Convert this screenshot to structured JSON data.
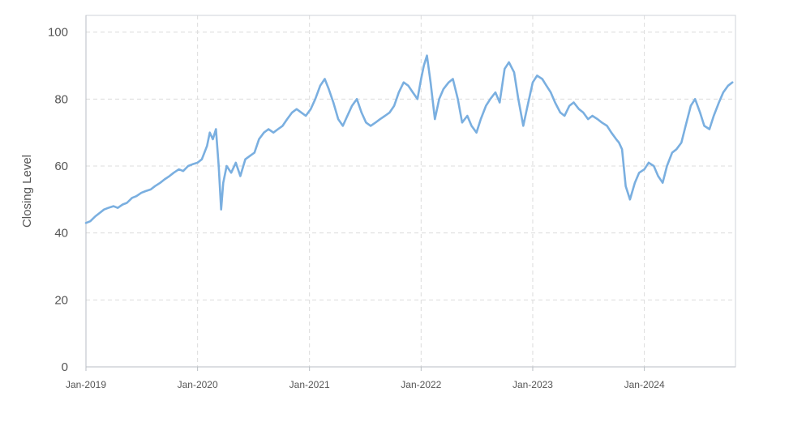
{
  "chart_data": {
    "type": "line",
    "title": "",
    "xlabel": "",
    "ylabel": "Closing Level",
    "ylim": [
      0,
      105
    ],
    "yticks": [
      0,
      20,
      40,
      60,
      80,
      100
    ],
    "xlim": [
      "2019-01",
      "2024-10"
    ],
    "xticks": [
      "2019-01",
      "2020-01",
      "2021-01",
      "2022-01",
      "2023-01",
      "2024-01"
    ],
    "xtick_labels": [
      "Jan-2019",
      "Jan-2020",
      "Jan-2021",
      "Jan-2022",
      "Jan-2023",
      "Jan-2024"
    ],
    "grid": true,
    "legend": "none",
    "colors": {
      "line": "#7aafe0",
      "grid": "#dcdcdc",
      "frame": "#cfd3d8",
      "text": "#555555"
    },
    "series": [
      {
        "x": [
          "2019-01-01",
          "2019-01-15",
          "2019-02-01",
          "2019-02-15",
          "2019-03-01",
          "2019-03-15",
          "2019-04-01",
          "2019-04-15",
          "2019-05-01",
          "2019-05-15",
          "2019-06-01",
          "2019-06-15",
          "2019-07-01",
          "2019-07-15",
          "2019-08-01",
          "2019-08-15",
          "2019-09-01",
          "2019-09-15",
          "2019-10-01",
          "2019-10-15",
          "2019-11-01",
          "2019-11-15",
          "2019-12-01",
          "2019-12-15",
          "2020-01-01",
          "2020-01-15",
          "2020-02-01",
          "2020-02-10",
          "2020-02-20",
          "2020-03-01",
          "2020-03-10",
          "2020-03-18",
          "2020-03-25",
          "2020-04-05",
          "2020-04-20",
          "2020-05-05",
          "2020-05-20",
          "2020-06-05",
          "2020-06-20",
          "2020-07-05",
          "2020-07-20",
          "2020-08-05",
          "2020-08-20",
          "2020-09-05",
          "2020-09-20",
          "2020-10-05",
          "2020-10-20",
          "2020-11-05",
          "2020-11-20",
          "2020-12-05",
          "2020-12-20",
          "2021-01-05",
          "2021-01-20",
          "2021-02-05",
          "2021-02-20",
          "2021-03-05",
          "2021-03-20",
          "2021-04-05",
          "2021-04-20",
          "2021-05-05",
          "2021-05-20",
          "2021-06-05",
          "2021-06-20",
          "2021-07-05",
          "2021-07-20",
          "2021-08-05",
          "2021-08-20",
          "2021-09-05",
          "2021-09-20",
          "2021-10-05",
          "2021-10-20",
          "2021-11-05",
          "2021-11-20",
          "2021-12-05",
          "2021-12-20",
          "2022-01-01",
          "2022-01-10",
          "2022-01-20",
          "2022-02-01",
          "2022-02-15",
          "2022-03-01",
          "2022-03-15",
          "2022-04-01",
          "2022-04-15",
          "2022-05-01",
          "2022-05-15",
          "2022-06-01",
          "2022-06-15",
          "2022-07-01",
          "2022-07-15",
          "2022-08-01",
          "2022-08-15",
          "2022-09-01",
          "2022-09-15",
          "2022-10-01",
          "2022-10-15",
          "2022-11-01",
          "2022-11-15",
          "2022-12-01",
          "2022-12-15",
          "2023-01-01",
          "2023-01-15",
          "2023-02-01",
          "2023-02-15",
          "2023-03-01",
          "2023-03-15",
          "2023-04-01",
          "2023-04-15",
          "2023-05-01",
          "2023-05-15",
          "2023-06-01",
          "2023-06-15",
          "2023-07-01",
          "2023-07-15",
          "2023-08-01",
          "2023-08-15",
          "2023-09-01",
          "2023-09-15",
          "2023-10-01",
          "2023-10-10",
          "2023-10-20",
          "2023-11-01",
          "2023-11-15",
          "2023-12-01",
          "2023-12-15",
          "2024-01-01",
          "2024-01-15",
          "2024-02-01",
          "2024-02-15",
          "2024-03-01",
          "2024-03-15",
          "2024-04-01",
          "2024-04-15",
          "2024-05-01",
          "2024-05-15",
          "2024-06-01",
          "2024-06-15",
          "2024-07-01",
          "2024-07-15",
          "2024-08-01",
          "2024-08-15",
          "2024-09-01",
          "2024-09-15",
          "2024-10-01",
          "2024-10-15"
        ],
        "values": [
          43,
          43.5,
          45,
          46,
          47,
          47.5,
          48,
          47.5,
          48.5,
          49,
          50.5,
          51,
          52,
          52.5,
          53,
          54,
          55,
          56,
          57,
          58,
          59,
          58.5,
          60,
          60.5,
          61,
          62,
          66,
          70,
          68,
          71,
          60,
          47,
          55,
          60,
          58,
          61,
          57,
          62,
          63,
          64,
          68,
          70,
          71,
          70,
          71,
          72,
          74,
          76,
          77,
          76,
          75,
          77,
          80,
          84,
          86,
          83,
          79,
          74,
          72,
          75,
          78,
          80,
          76,
          73,
          72,
          73,
          74,
          75,
          76,
          78,
          82,
          85,
          84,
          82,
          80,
          86,
          90,
          93,
          85,
          74,
          80,
          83,
          85,
          86,
          80,
          73,
          75,
          72,
          70,
          74,
          78,
          80,
          82,
          79,
          89,
          91,
          88,
          80,
          72,
          78,
          85,
          87,
          86,
          84,
          82,
          79,
          76,
          75,
          78,
          79,
          77,
          76,
          74,
          75,
          74,
          73,
          72,
          70,
          68,
          67,
          65,
          54,
          50,
          55,
          58,
          59,
          61,
          60,
          57,
          55,
          60,
          64,
          65,
          67,
          72,
          78,
          80,
          76,
          72,
          71,
          75,
          79,
          82,
          84,
          85
        ]
      }
    ]
  }
}
